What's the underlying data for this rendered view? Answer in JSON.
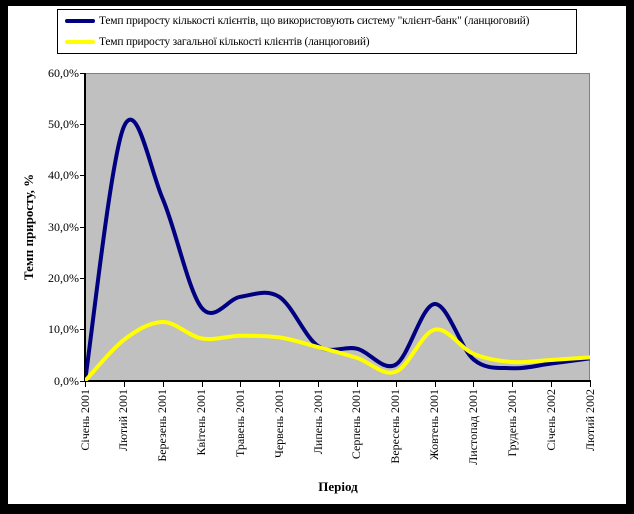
{
  "chart_data": {
    "type": "line",
    "smooth": true,
    "grid": false,
    "legend_position": "top",
    "plot_bg": "#C0C0C0",
    "outer_border_color": "#000000",
    "xlabel": "Період",
    "ylabel": "Темп приросту, %",
    "ylim": [
      0,
      60
    ],
    "ytick_labels": [
      "60,0%",
      "50,0%",
      "40,0%",
      "30,0%",
      "20,0%",
      "10,0%",
      "0,0%"
    ],
    "categories": [
      "Січень 2001",
      "Лютий 2001",
      "Березень 2001",
      "Квітень 2001",
      "Травень 2001",
      "Червень 2001",
      "Липень 2001",
      "Серпень 2001",
      "Вересень 2001",
      "Жовтень 2001",
      "Листопад 2001",
      "Грудень 2001",
      "Січень 2002",
      "Лютий 2002"
    ],
    "series": [
      {
        "name": "Темп приросту кількості клієнтів, що використовують систему \"клієнт-банк\" (ланцюговий)",
        "color": "#000080",
        "values": [
          0.0,
          49.5,
          35.5,
          14.3,
          16.4,
          16.4,
          6.8,
          6.3,
          3.2,
          15.0,
          4.2,
          2.5,
          3.4,
          4.4
        ]
      },
      {
        "name": "Темп приросту загальної кількості клієнтів (ланцюговий)",
        "color": "#FFFF00",
        "values": [
          0.0,
          8.0,
          11.5,
          8.3,
          8.8,
          8.5,
          6.6,
          4.5,
          1.8,
          10.0,
          5.3,
          3.7,
          4.1,
          4.6
        ]
      }
    ]
  }
}
